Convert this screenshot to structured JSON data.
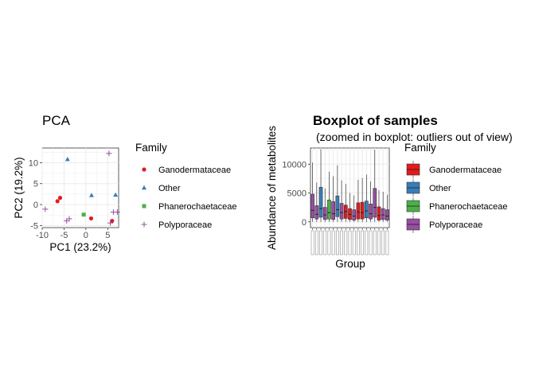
{
  "chart_data": [
    {
      "type": "scatter",
      "title": "PCA",
      "xlabel": "PC1 (23.2%)",
      "ylabel": "PC2 (19.2%)",
      "xlim": [
        -10,
        7.5
      ],
      "ylim": [
        -5.5,
        13.5
      ],
      "xticks": [
        "-10",
        "-5",
        "0",
        "5"
      ],
      "yticks": [
        "-5",
        "0",
        "5",
        "10"
      ],
      "grid": true,
      "legend": {
        "title": "Family",
        "placement": "right"
      },
      "series": [
        {
          "name": "Ganodermataceae",
          "color": "#e41a1c",
          "shape": "circle",
          "points": [
            [
              -6.5,
              0.8
            ],
            [
              -5.9,
              1.6
            ],
            [
              1.2,
              -3.3
            ],
            [
              6.0,
              -3.9
            ]
          ]
        },
        {
          "name": "Other",
          "color": "#377eb8",
          "shape": "triangle",
          "points": [
            [
              -4.2,
              10.8
            ],
            [
              1.3,
              2.2
            ],
            [
              6.8,
              2.3
            ]
          ]
        },
        {
          "name": "Phanerochaetaceae",
          "color": "#4daf4a",
          "shape": "square",
          "points": [
            [
              -0.5,
              -2.4
            ]
          ]
        },
        {
          "name": "Polyporaceae",
          "color": "#984ea3",
          "shape": "plus",
          "points": [
            [
              -9.3,
              -1.1
            ],
            [
              -4.4,
              -3.9
            ],
            [
              -3.8,
              -3.4
            ],
            [
              5.3,
              12.2
            ],
            [
              5.6,
              -4.4
            ],
            [
              6.3,
              -1.8
            ],
            [
              7.2,
              -1.8
            ]
          ]
        }
      ]
    },
    {
      "type": "box",
      "title": "Boxplot of samples",
      "subtitle": "(zoomed in boxplot: outliers out of view)",
      "xlabel": "Group",
      "ylabel": "Abundance of metabolites",
      "ylim": [
        -1000,
        12800
      ],
      "yticks": [
        "0",
        "5000",
        "10000"
      ],
      "grid": true,
      "legend": {
        "title": "Family",
        "placement": "right"
      },
      "colors": {
        "Ganodermataceae": "#e41a1c",
        "Other": "#377eb8",
        "Phanerochaetaceae": "#4daf4a",
        "Polyporaceae": "#984ea3"
      },
      "boxes": [
        {
          "family": "Polyporaceae",
          "q1": 700,
          "median": 2000,
          "q3": 4800,
          "lo": 0,
          "hi": 10300
        },
        {
          "family": "Polyporaceae",
          "q1": 500,
          "median": 1300,
          "q3": 2800,
          "lo": 0,
          "hi": 6800
        },
        {
          "family": "Other",
          "q1": 800,
          "median": 2300,
          "q3": 6000,
          "lo": 0,
          "hi": 12600
        },
        {
          "family": "Polyporaceae",
          "q1": 400,
          "median": 1200,
          "q3": 2500,
          "lo": 0,
          "hi": 5800
        },
        {
          "family": "Phanerochaetaceae",
          "q1": 500,
          "median": 1600,
          "q3": 3800,
          "lo": 0,
          "hi": 8700
        },
        {
          "family": "Polyporaceae",
          "q1": 400,
          "median": 1400,
          "q3": 3500,
          "lo": 0,
          "hi": 7900
        },
        {
          "family": "Other",
          "q1": 900,
          "median": 2100,
          "q3": 4500,
          "lo": 0,
          "hi": 9800
        },
        {
          "family": "Polyporaceae",
          "q1": 500,
          "median": 1600,
          "q3": 3200,
          "lo": 0,
          "hi": 7200
        },
        {
          "family": "Ganodermataceae",
          "q1": 600,
          "median": 1800,
          "q3": 2900,
          "lo": 0,
          "hi": 6600
        },
        {
          "family": "Ganodermataceae",
          "q1": 400,
          "median": 1300,
          "q3": 2300,
          "lo": 0,
          "hi": 5000
        },
        {
          "family": "Polyporaceae",
          "q1": 300,
          "median": 1000,
          "q3": 2100,
          "lo": 0,
          "hi": 4600
        },
        {
          "family": "Ganodermataceae",
          "q1": 500,
          "median": 1700,
          "q3": 3300,
          "lo": 0,
          "hi": 7300
        },
        {
          "family": "Ganodermataceae",
          "q1": 500,
          "median": 1600,
          "q3": 3400,
          "lo": 0,
          "hi": 7600
        },
        {
          "family": "Other",
          "q1": 700,
          "median": 1900,
          "q3": 3600,
          "lo": 0,
          "hi": 8200
        },
        {
          "family": "Polyporaceae",
          "q1": 500,
          "median": 1400,
          "q3": 3100,
          "lo": 0,
          "hi": 7000
        },
        {
          "family": "Polyporaceae",
          "q1": 800,
          "median": 2500,
          "q3": 5800,
          "lo": 0,
          "hi": 12500
        },
        {
          "family": "Ganodermataceae",
          "q1": 300,
          "median": 1100,
          "q3": 2600,
          "lo": 0,
          "hi": 5500
        },
        {
          "family": "Polyporaceae",
          "q1": 400,
          "median": 1200,
          "q3": 2300,
          "lo": 0,
          "hi": 5200
        },
        {
          "family": "Polyporaceae",
          "q1": 300,
          "median": 1000,
          "q3": 2100,
          "lo": 0,
          "hi": 4700
        }
      ],
      "tick_labels_illegible": true
    }
  ],
  "legend_items": [
    "Ganodermataceae",
    "Other",
    "Phanerochaetaceae",
    "Polyporaceae"
  ],
  "legend_title": "Family"
}
